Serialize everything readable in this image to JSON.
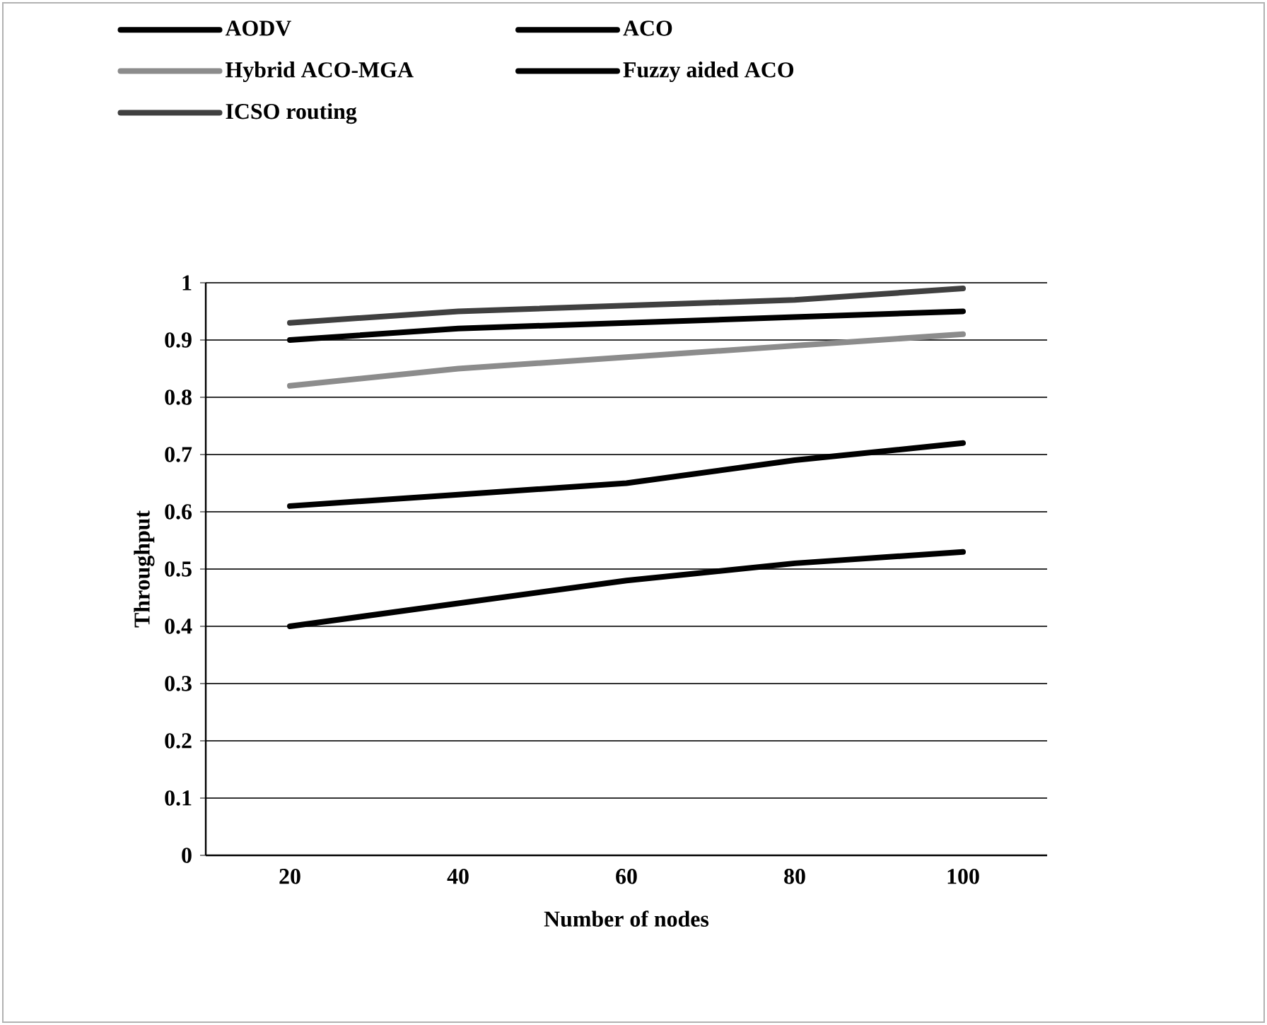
{
  "chart_data": {
    "type": "line",
    "xlabel": "Number of nodes",
    "ylabel": "Throughput",
    "categories": [
      "20",
      "40",
      "60",
      "80",
      "100"
    ],
    "series": [
      {
        "name": "AODV",
        "color": "#000000",
        "values": [
          0.4,
          0.44,
          0.48,
          0.51,
          0.53
        ]
      },
      {
        "name": "ACO",
        "color": "#000000",
        "values": [
          0.61,
          0.63,
          0.65,
          0.69,
          0.72
        ]
      },
      {
        "name": "Hybrid ACO-MGA",
        "color": "#8c8c8c",
        "values": [
          0.82,
          0.85,
          0.87,
          0.89,
          0.91
        ]
      },
      {
        "name": "Fuzzy aided ACO",
        "color": "#000000",
        "values": [
          0.9,
          0.92,
          0.93,
          0.94,
          0.95
        ]
      },
      {
        "name": "ICSO routing",
        "color": "#404040",
        "values": [
          0.93,
          0.95,
          0.96,
          0.97,
          0.99
        ]
      }
    ],
    "ylim": [
      0,
      1
    ],
    "yticks": [
      0,
      0.1,
      0.2,
      0.3,
      0.4,
      0.5,
      0.6,
      0.7,
      0.8,
      0.9,
      1
    ],
    "grid": "y",
    "legend": "top",
    "marker": "none",
    "line_style": "solid"
  }
}
